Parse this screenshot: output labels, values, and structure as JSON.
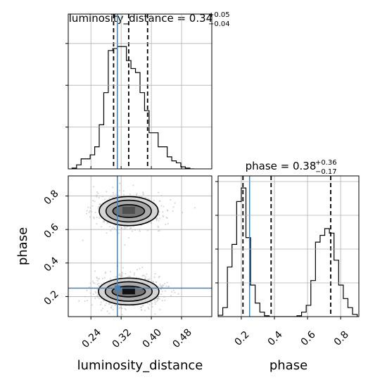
{
  "chart_data": {
    "type": "corner",
    "parameters": [
      "luminosity_distance",
      "phase"
    ],
    "truths": {
      "luminosity_distance": 0.31,
      "phase": 0.25
    },
    "panels": [
      {
        "id": "luminosity_distance-marginal",
        "type": "histogram-step",
        "title": {
          "main": "luminosity_distance = 0.34",
          "sup": "+0.05",
          "sub": "−0.04"
        },
        "median": 0.34,
        "quantiles": [
          0.3,
          0.34,
          0.39
        ],
        "truth": 0.31,
        "xlim": [
          0.18,
          0.56
        ],
        "bin_edges": [
          0.19,
          0.202,
          0.214,
          0.226,
          0.238,
          0.25,
          0.262,
          0.274,
          0.286,
          0.298,
          0.31,
          0.322,
          0.334,
          0.346,
          0.358,
          0.37,
          0.382,
          0.394,
          0.406,
          0.418,
          0.43,
          0.442,
          0.454,
          0.466,
          0.478,
          0.49,
          0.502,
          0.514
        ],
        "counts": [
          2,
          10,
          25,
          25,
          35,
          55,
          110,
          190,
          295,
          300,
          305,
          305,
          270,
          250,
          240,
          190,
          145,
          90,
          90,
          55,
          55,
          30,
          20,
          15,
          5,
          2,
          0
        ]
      },
      {
        "id": "phase-marginal",
        "type": "histogram-step",
        "title": {
          "main": "phase = 0.38",
          "sup": "+0.36",
          "sub": "−0.17"
        },
        "median": 0.38,
        "quantiles": [
          0.21,
          0.38,
          0.74
        ],
        "truth": 0.25,
        "xlim": [
          0.06,
          0.91
        ],
        "bin_edges": [
          0.06,
          0.088,
          0.116,
          0.144,
          0.172,
          0.2,
          0.228,
          0.256,
          0.284,
          0.312,
          0.34,
          0.368,
          0.396,
          0.424,
          0.452,
          0.48,
          0.508,
          0.536,
          0.564,
          0.592,
          0.62,
          0.648,
          0.676,
          0.704,
          0.732,
          0.76,
          0.788,
          0.816,
          0.844,
          0.872,
          0.9
        ],
        "counts": [
          3,
          20,
          110,
          160,
          255,
          285,
          175,
          70,
          30,
          10,
          2,
          0,
          0,
          0,
          0,
          0,
          0,
          2,
          10,
          25,
          80,
          165,
          180,
          195,
          185,
          125,
          70,
          40,
          20,
          5
        ]
      },
      {
        "id": "joint-density",
        "type": "2d-density-contour",
        "xlabel": "luminosity_distance",
        "ylabel": "phase",
        "xlim": [
          0.18,
          0.56
        ],
        "ylim": [
          0.08,
          0.92
        ],
        "x_ticks": [
          "0.24",
          "0.32",
          "0.40",
          "0.48"
        ],
        "y_ticks": [
          "0.2",
          "0.4",
          "0.6",
          "0.8"
        ],
        "modes": [
          {
            "x": 0.34,
            "y": 0.71,
            "levels": [
              [
                0.042,
                0.038
              ],
              [
                0.06,
                0.065
              ],
              [
                0.078,
                0.087
              ]
            ]
          },
          {
            "x": 0.34,
            "y": 0.23,
            "levels": [
              [
                0.044,
                0.032
              ],
              [
                0.062,
                0.058
              ],
              [
                0.08,
                0.08
              ]
            ]
          }
        ]
      }
    ],
    "phase_x_ticks": [
      "0.2",
      "0.4",
      "0.6",
      "0.8"
    ],
    "lum_x_ticks_values": [
      0.24,
      0.32,
      0.4,
      0.48
    ],
    "phase_x_ticks_values": [
      0.2,
      0.4,
      0.6,
      0.8
    ],
    "phase_y_ticks_values": [
      0.2,
      0.4,
      0.6,
      0.8
    ],
    "colors": {
      "line": "#000000",
      "truth": "#4682b4",
      "grid": "#b0b0b0",
      "scatter": "#bbbbbb"
    }
  }
}
